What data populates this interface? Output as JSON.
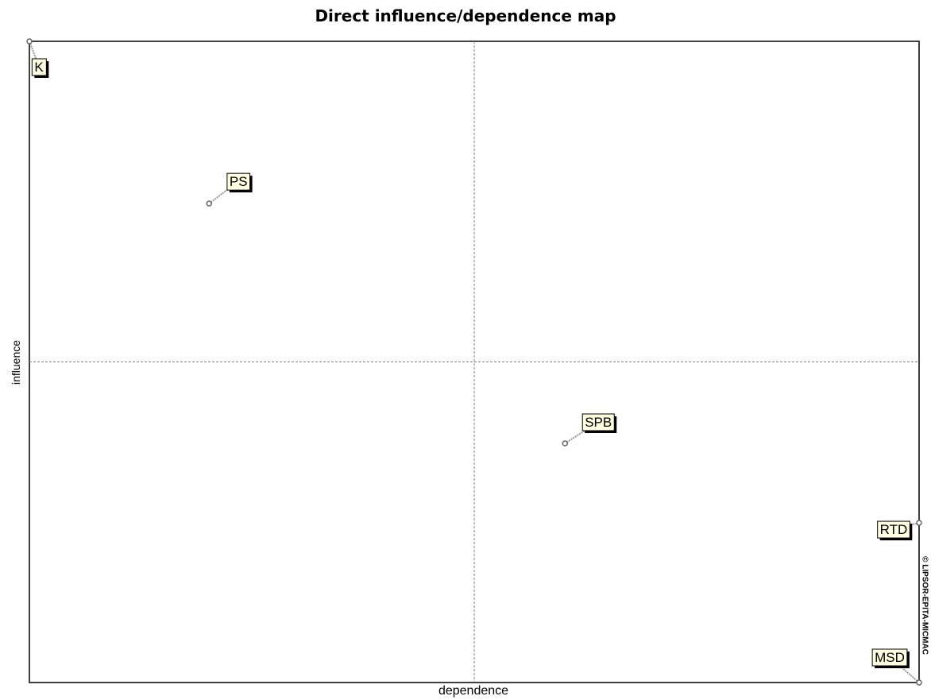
{
  "chart_data": {
    "type": "scatter",
    "title": "Direct influence/dependence map",
    "xlabel": "dependence",
    "ylabel": "influence",
    "credit": "© LIPSOR-EPITA-MICMAC",
    "grid": "crosshair at axis midpoints",
    "xlim": [
      0,
      1
    ],
    "ylim": [
      0,
      1
    ],
    "points": [
      {
        "label": "K",
        "x": 0.0,
        "y": 1.0
      },
      {
        "label": "PS",
        "x": 0.202,
        "y": 0.747
      },
      {
        "label": "SPB",
        "x": 0.602,
        "y": 0.373
      },
      {
        "label": "RTD",
        "x": 1.0,
        "y": 0.249
      },
      {
        "label": "MSD",
        "x": 1.0,
        "y": 0.0
      }
    ],
    "colors": {
      "label_bg": "#ffffe1",
      "axes": "#000000",
      "divider": "#808080",
      "point": "#666666"
    }
  }
}
